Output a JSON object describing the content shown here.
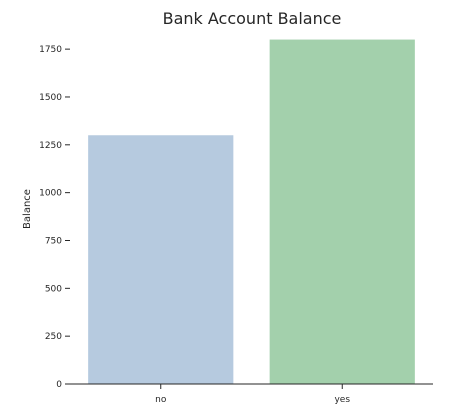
{
  "chart_data": {
    "type": "bar",
    "title": "Bank Account Balance",
    "xlabel": "",
    "ylabel": "Balance",
    "categories": [
      "no",
      "yes"
    ],
    "values": [
      1300,
      1800
    ],
    "colors": [
      "#b6cadf",
      "#a3d0ac"
    ],
    "ylim": [
      0,
      1850
    ],
    "yticks": [
      0,
      250,
      500,
      750,
      1000,
      1250,
      1500,
      1750
    ],
    "grid": false,
    "legend": "none"
  }
}
